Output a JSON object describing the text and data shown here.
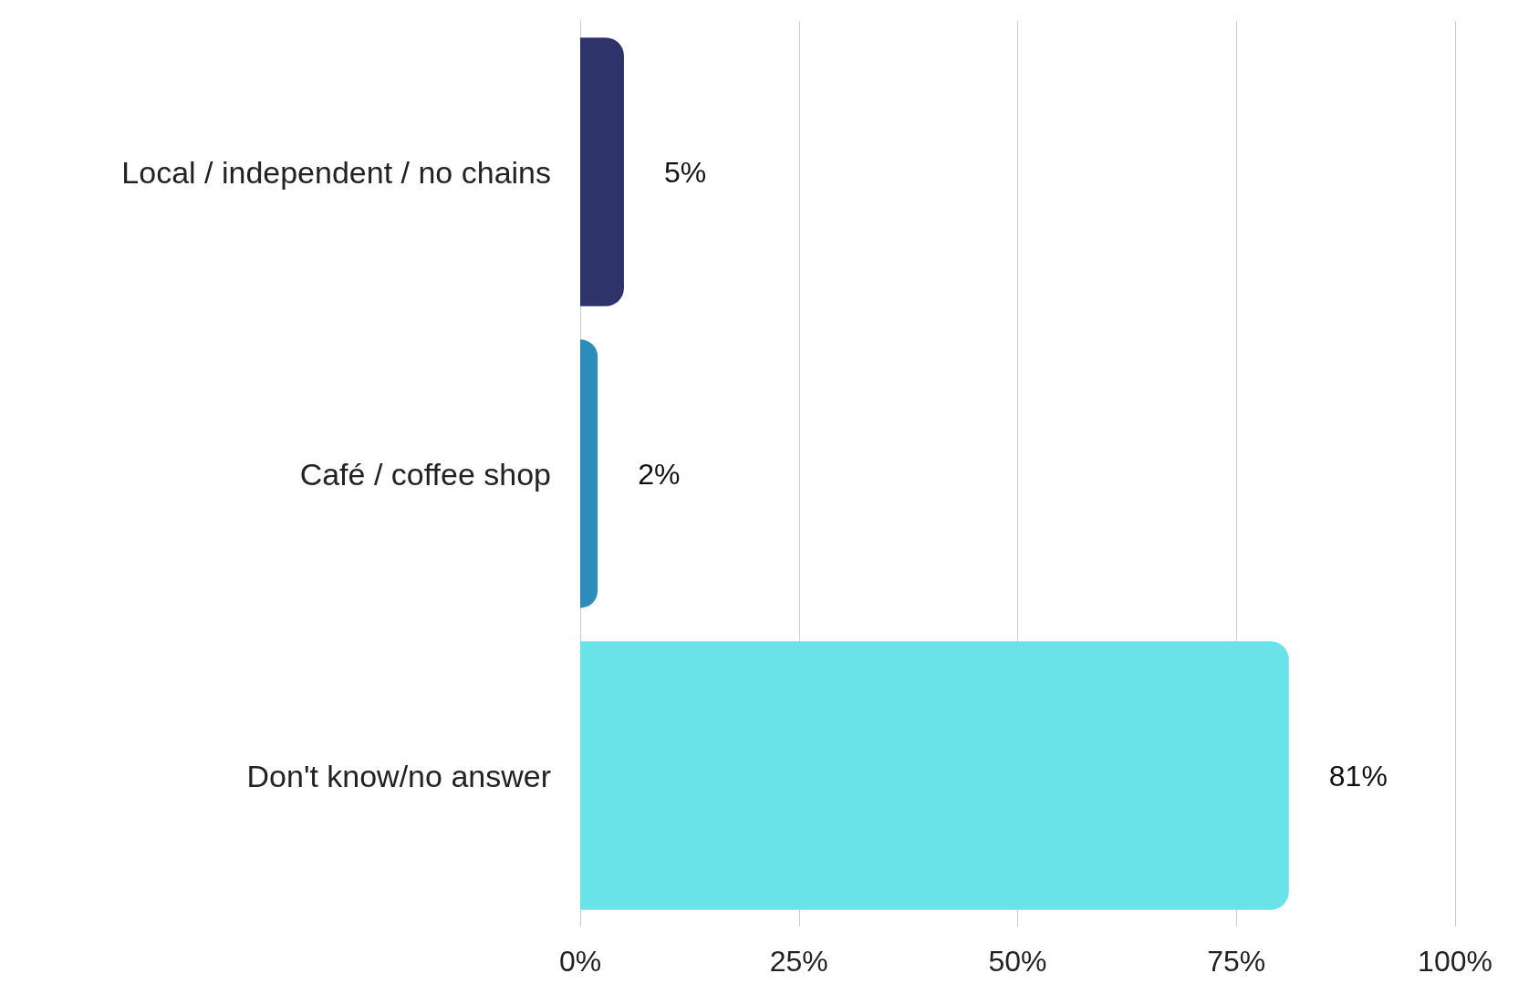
{
  "chart_data": {
    "type": "bar",
    "orientation": "horizontal",
    "categories": [
      "Local / independent / no chains",
      "Café / coffee shop",
      "Don't know/no answer"
    ],
    "values": [
      5,
      2,
      81
    ],
    "colors": [
      "#2e3369",
      "#2e8cbb",
      "#6ae3e8"
    ],
    "value_labels": [
      "5%",
      "2%",
      "81%"
    ],
    "xlim": [
      0,
      100
    ],
    "xticks": [
      {
        "value": 0,
        "label": "0%"
      },
      {
        "value": 25,
        "label": "25%"
      },
      {
        "value": 50,
        "label": "50%"
      },
      {
        "value": 75,
        "label": "75%"
      },
      {
        "value": 100,
        "label": "100%"
      }
    ],
    "grid": "x"
  }
}
